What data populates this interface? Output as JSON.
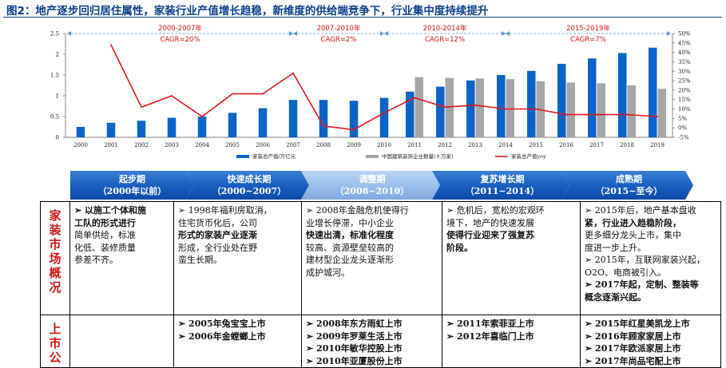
{
  "title": "图2：地产逐步回归居住属性，家装行业产值增长趋稳，新维度的供给端竞争下，行业集中度持续提升",
  "chart_data": {
    "type": "bar",
    "categories": [
      "2000",
      "2001",
      "2002",
      "2003",
      "2004",
      "2005",
      "2006",
      "2007",
      "2008",
      "2009",
      "2010",
      "2011",
      "2012",
      "2013",
      "2014",
      "2015",
      "2016",
      "2017",
      "2018",
      "2019"
    ],
    "y_left_ticks": [
      "0",
      "0.5",
      "1",
      "1.5",
      "2",
      "2.5"
    ],
    "y_right_ticks": [
      "-5%",
      "0%",
      "5%",
      "10%",
      "15%",
      "20%",
      "25%",
      "30%",
      "35%",
      "40%",
      "45%",
      "50%"
    ],
    "ylim_left": [
      0,
      2.5
    ],
    "ylim_right": [
      -5,
      50
    ],
    "series": [
      {
        "name": "家装总产值/万亿元",
        "axis": "left",
        "type": "bar",
        "color": "#0a64c8",
        "values": [
          0.25,
          0.35,
          0.4,
          0.47,
          0.5,
          0.59,
          0.7,
          0.9,
          0.9,
          0.88,
          0.95,
          1.1,
          1.22,
          1.37,
          1.5,
          1.6,
          1.77,
          1.9,
          2.03,
          2.16
        ]
      },
      {
        "name": "中国建筑装饰企业数量(十万家)",
        "axis": "left",
        "type": "bar",
        "color": "#a6a6a6",
        "values": [
          null,
          null,
          null,
          null,
          null,
          null,
          null,
          null,
          null,
          null,
          null,
          1.45,
          1.43,
          1.42,
          1.4,
          1.35,
          1.32,
          1.3,
          1.25,
          1.17
        ]
      },
      {
        "name": "家装总产值yoy",
        "axis": "right",
        "type": "line",
        "color": "#e8151c",
        "values": [
          null,
          44,
          11,
          17,
          6,
          18,
          18,
          29,
          1,
          -1,
          8,
          16,
          11,
          12,
          10,
          10,
          7,
          7,
          7,
          6
        ]
      }
    ],
    "periods": [
      {
        "range": "2000-2007年",
        "cagr": "CAGR=20%"
      },
      {
        "range": "2007-2010年",
        "cagr": "CAGR=2%"
      },
      {
        "range": "2010-2014年",
        "cagr": "CAGR=12%"
      },
      {
        "range": "2015-2019年",
        "cagr": "CAGR=7%"
      }
    ]
  },
  "phases": [
    {
      "name": "起步期",
      "years": "（2000年以前）"
    },
    {
      "name": "快速成长期",
      "years": "（2000~2007）"
    },
    {
      "name": "调整期",
      "years": "（2008~2010）"
    },
    {
      "name": "复苏增长期",
      "years": "（2011~2014）"
    },
    {
      "name": "成熟期",
      "years": "（2015~至今）"
    }
  ],
  "table": {
    "row1_header": "家装市场概况",
    "row2_header": "上市公",
    "overview": [
      [
        {
          "t": "➢ 以施工个体和施",
          "b": true
        },
        {
          "t": "工队的形式进行",
          "b": true
        },
        {
          "t": "简单供给，标准",
          "b": false
        },
        {
          "t": "化低、装修质量",
          "b": false
        },
        {
          "t": "参差不齐。",
          "b": false
        }
      ],
      [
        {
          "t": "➢ 1998年福利房取消，",
          "b": false
        },
        {
          "t": "住宅货币化后，公司",
          "b": false
        },
        {
          "t": "形式的家装产业逐渐",
          "b": true
        },
        {
          "t": "形成，全行业处在野",
          "b": false
        },
        {
          "t": "蛮生长期。",
          "b": false
        }
      ],
      [
        {
          "t": "➢ 2008年金融危机使得行",
          "b": false
        },
        {
          "t": "业增长停滞，中小企业",
          "b": false
        },
        {
          "t": "快速出清，标准化程度",
          "b": true
        },
        {
          "t": "较高、资源壁垒较高的",
          "b": false
        },
        {
          "t": "建材型企业龙头逐渐形",
          "b": false
        },
        {
          "t": "成护城河。",
          "b": false
        }
      ],
      [
        {
          "t": "➢ 危机后，宽松的宏观环",
          "b": false
        },
        {
          "t": "境下，地产的快速发展",
          "b": false
        },
        {
          "t": "使得行业迎来了强复苏",
          "b": true
        },
        {
          "t": "阶段。",
          "b": true
        }
      ],
      [
        {
          "t": "➢ 2015年后，地产基本盘收",
          "b": false
        },
        {
          "t": "紧，行业进入趋稳阶段，",
          "b": true
        },
        {
          "t": "更多细分龙头上市，集中",
          "b": false
        },
        {
          "t": "度进一步上升。",
          "b": false
        },
        {
          "t": "➢ 2015年，互联网家装兴起，",
          "b": false
        },
        {
          "t": "O2O、电商被引入。",
          "b": false
        },
        {
          "t": "➢ 2017年起，定制、整装等",
          "b": true
        },
        {
          "t": "概念逐渐兴起。",
          "b": true
        }
      ]
    ],
    "listings": [
      [],
      [
        {
          "t": "➢ 2005年兔宝宝上市",
          "b": true
        },
        {
          "t": "➢ 2006年金螳螂上市",
          "b": true
        }
      ],
      [
        {
          "t": "➢ 2008年东方雨虹上市",
          "b": true
        },
        {
          "t": "➢ 2009年罗莱生活上市",
          "b": true
        },
        {
          "t": "➢ 2010年敏华控股上市",
          "b": true
        },
        {
          "t": "➢ 2010年亚厦股份上市",
          "b": true
        }
      ],
      [
        {
          "t": "➢ 2011年索菲亚上市",
          "b": true
        },
        {
          "t": "➢ 2012年喜临门上市",
          "b": true
        }
      ],
      [
        {
          "t": "➢ 2015年红星美凯龙上市",
          "b": true
        },
        {
          "t": "➢ 2016年顾家家居上市",
          "b": true
        },
        {
          "t": "➢ 2017年欧派家居上市",
          "b": true
        },
        {
          "t": "➢ 2017年尚品宅配上市",
          "b": true
        }
      ]
    ]
  }
}
